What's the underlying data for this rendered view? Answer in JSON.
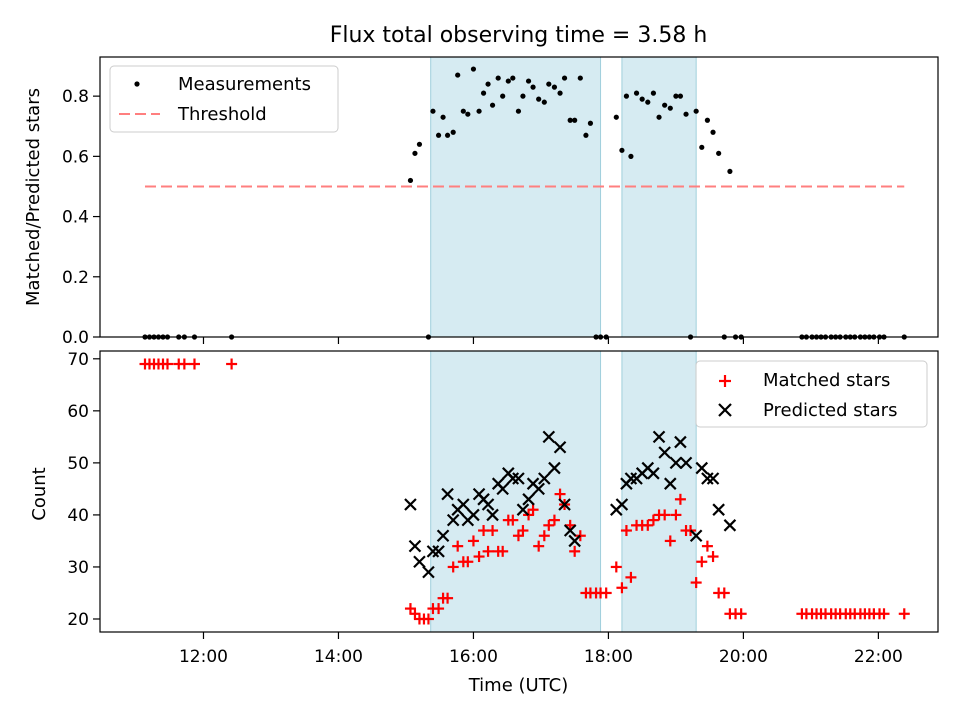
{
  "title": "Flux total observing time = 3.58 h",
  "chart_data": [
    {
      "type": "scatter",
      "ylabel": "Matched/Predicted stars",
      "ylim": [
        0,
        0.93
      ],
      "xlim": [
        "10:28",
        "22:53"
      ],
      "yticks": [
        "0.0",
        "0.2",
        "0.4",
        "0.6",
        "0.8"
      ],
      "ytick_values": [
        0,
        0.2,
        0.4,
        0.6,
        0.8
      ],
      "legend_position": "top-left",
      "shaded_intervals": [
        [
          "15:22",
          "17:53"
        ],
        [
          "18:12",
          "19:18"
        ]
      ],
      "threshold": {
        "name": "Threshold",
        "value": 0.5,
        "x_start": "11:08",
        "x_end": "22:23",
        "color": "#ff7f7f"
      },
      "series": [
        {
          "name": "Measurements",
          "color": "#000000",
          "points": [
            [
              "11:08",
              0
            ],
            [
              "11:12",
              0
            ],
            [
              "11:16",
              0
            ],
            [
              "11:20",
              0
            ],
            [
              "11:24",
              0
            ],
            [
              "11:28",
              0
            ],
            [
              "11:38",
              0
            ],
            [
              "11:43",
              0
            ],
            [
              "11:52",
              0
            ],
            [
              "12:25",
              0
            ],
            [
              "15:04",
              0.52
            ],
            [
              "15:08",
              0.61
            ],
            [
              "15:12",
              0.64
            ],
            [
              "15:20",
              0
            ],
            [
              "15:24",
              0.75
            ],
            [
              "15:29",
              0.67
            ],
            [
              "15:33",
              0.73
            ],
            [
              "15:37",
              0.67
            ],
            [
              "15:42",
              0.68
            ],
            [
              "15:46",
              0.87
            ],
            [
              "15:51",
              0.75
            ],
            [
              "15:55",
              0.74
            ],
            [
              "16:00",
              0.89
            ],
            [
              "16:05",
              0.75
            ],
            [
              "16:09",
              0.81
            ],
            [
              "16:13",
              0.84
            ],
            [
              "16:17",
              0.77
            ],
            [
              "16:22",
              0.86
            ],
            [
              "16:26",
              0.8
            ],
            [
              "16:31",
              0.85
            ],
            [
              "16:35",
              0.86
            ],
            [
              "16:40",
              0.75
            ],
            [
              "16:44",
              0.8
            ],
            [
              "16:49",
              0.85
            ],
            [
              "16:53",
              0.83
            ],
            [
              "16:58",
              0.79
            ],
            [
              "17:03",
              0.78
            ],
            [
              "17:07",
              0.84
            ],
            [
              "17:12",
              0.83
            ],
            [
              "17:17",
              0.81
            ],
            [
              "17:21",
              0.86
            ],
            [
              "17:26",
              0.72
            ],
            [
              "17:30",
              0.72
            ],
            [
              "17:35",
              0.86
            ],
            [
              "17:40",
              0.67
            ],
            [
              "17:44",
              0.71
            ],
            [
              "17:49",
              0
            ],
            [
              "17:53",
              0
            ],
            [
              "17:58",
              0
            ],
            [
              "18:07",
              0.73
            ],
            [
              "18:12",
              0.62
            ],
            [
              "18:16",
              0.8
            ],
            [
              "18:20",
              0.6
            ],
            [
              "18:25",
              0.81
            ],
            [
              "18:30",
              0.79
            ],
            [
              "18:35",
              0.78
            ],
            [
              "18:40",
              0.81
            ],
            [
              "18:45",
              0.73
            ],
            [
              "18:50",
              0.77
            ],
            [
              "18:55",
              0.76
            ],
            [
              "19:00",
              0.8
            ],
            [
              "19:04",
              0.8
            ],
            [
              "19:09",
              0.74
            ],
            [
              "19:13",
              0
            ],
            [
              "19:18",
              0.75
            ],
            [
              "19:23",
              0.63
            ],
            [
              "19:28",
              0.72
            ],
            [
              "19:33",
              0.68
            ],
            [
              "19:38",
              0.61
            ],
            [
              "19:43",
              0
            ],
            [
              "19:48",
              0.55
            ],
            [
              "19:53",
              0
            ],
            [
              "19:58",
              0
            ],
            [
              "20:52",
              0
            ],
            [
              "20:56",
              0
            ],
            [
              "21:01",
              0
            ],
            [
              "21:05",
              0
            ],
            [
              "21:09",
              0
            ],
            [
              "21:13",
              0
            ],
            [
              "21:18",
              0
            ],
            [
              "21:22",
              0
            ],
            [
              "21:26",
              0
            ],
            [
              "21:31",
              0
            ],
            [
              "21:35",
              0
            ],
            [
              "21:39",
              0
            ],
            [
              "21:44",
              0
            ],
            [
              "21:48",
              0
            ],
            [
              "21:52",
              0
            ],
            [
              "21:56",
              0
            ],
            [
              "22:01",
              0
            ],
            [
              "22:05",
              0
            ],
            [
              "22:23",
              0
            ]
          ]
        }
      ]
    },
    {
      "type": "scatter",
      "xlabel": "Time (UTC)",
      "ylabel": "Count",
      "ylim": [
        17.5,
        71.5
      ],
      "xlim": [
        "10:28",
        "22:53"
      ],
      "xticks": [
        "12:00",
        "14:00",
        "16:00",
        "18:00",
        "20:00",
        "22:00"
      ],
      "yticks": [
        "20",
        "30",
        "40",
        "50",
        "60",
        "70"
      ],
      "ytick_values": [
        20,
        30,
        40,
        50,
        60,
        70
      ],
      "legend_position": "top-right",
      "shaded_intervals": [
        [
          "15:22",
          "17:53"
        ],
        [
          "18:12",
          "19:18"
        ]
      ],
      "series": [
        {
          "name": "Matched stars",
          "marker": "plus",
          "color": "#ff0000",
          "points": [
            [
              "11:08",
              69
            ],
            [
              "11:12",
              69
            ],
            [
              "11:16",
              69
            ],
            [
              "11:20",
              69
            ],
            [
              "11:24",
              69
            ],
            [
              "11:28",
              69
            ],
            [
              "11:38",
              69
            ],
            [
              "11:43",
              69
            ],
            [
              "11:52",
              69
            ],
            [
              "12:25",
              69
            ],
            [
              "15:04",
              22
            ],
            [
              "15:08",
              21
            ],
            [
              "15:12",
              20
            ],
            [
              "15:16",
              20
            ],
            [
              "15:20",
              20
            ],
            [
              "15:24",
              22
            ],
            [
              "15:29",
              22
            ],
            [
              "15:33",
              24
            ],
            [
              "15:37",
              24
            ],
            [
              "15:42",
              30
            ],
            [
              "15:46",
              34
            ],
            [
              "15:51",
              31
            ],
            [
              "15:55",
              31
            ],
            [
              "16:00",
              35
            ],
            [
              "16:05",
              32
            ],
            [
              "16:09",
              37
            ],
            [
              "16:13",
              33
            ],
            [
              "16:17",
              37
            ],
            [
              "16:22",
              33
            ],
            [
              "16:26",
              33
            ],
            [
              "16:31",
              39
            ],
            [
              "16:35",
              39
            ],
            [
              "16:40",
              36
            ],
            [
              "16:44",
              37
            ],
            [
              "16:49",
              40
            ],
            [
              "16:53",
              41
            ],
            [
              "16:58",
              34
            ],
            [
              "17:03",
              36
            ],
            [
              "17:07",
              38
            ],
            [
              "17:12",
              39
            ],
            [
              "17:17",
              44
            ],
            [
              "17:21",
              42
            ],
            [
              "17:26",
              38
            ],
            [
              "17:30",
              33
            ],
            [
              "17:35",
              36
            ],
            [
              "17:40",
              25
            ],
            [
              "17:44",
              25
            ],
            [
              "17:49",
              25
            ],
            [
              "17:53",
              25
            ],
            [
              "17:58",
              25
            ],
            [
              "18:07",
              30
            ],
            [
              "18:12",
              26
            ],
            [
              "18:16",
              37
            ],
            [
              "18:20",
              28
            ],
            [
              "18:25",
              38
            ],
            [
              "18:30",
              38
            ],
            [
              "18:35",
              38
            ],
            [
              "18:40",
              39
            ],
            [
              "18:45",
              40
            ],
            [
              "18:50",
              40
            ],
            [
              "18:55",
              35
            ],
            [
              "19:00",
              40
            ],
            [
              "19:04",
              43
            ],
            [
              "19:09",
              37
            ],
            [
              "19:13",
              37
            ],
            [
              "19:18",
              27
            ],
            [
              "19:23",
              31
            ],
            [
              "19:28",
              34
            ],
            [
              "19:33",
              32
            ],
            [
              "19:38",
              25
            ],
            [
              "19:43",
              25
            ],
            [
              "19:48",
              21
            ],
            [
              "19:53",
              21
            ],
            [
              "19:58",
              21
            ],
            [
              "20:52",
              21
            ],
            [
              "20:56",
              21
            ],
            [
              "21:01",
              21
            ],
            [
              "21:05",
              21
            ],
            [
              "21:09",
              21
            ],
            [
              "21:13",
              21
            ],
            [
              "21:18",
              21
            ],
            [
              "21:22",
              21
            ],
            [
              "21:26",
              21
            ],
            [
              "21:31",
              21
            ],
            [
              "21:35",
              21
            ],
            [
              "21:39",
              21
            ],
            [
              "21:44",
              21
            ],
            [
              "21:48",
              21
            ],
            [
              "21:52",
              21
            ],
            [
              "21:56",
              21
            ],
            [
              "22:01",
              21
            ],
            [
              "22:05",
              21
            ],
            [
              "22:23",
              21
            ]
          ]
        },
        {
          "name": "Predicted stars",
          "marker": "x",
          "color": "#000000",
          "points": [
            [
              "15:04",
              42
            ],
            [
              "15:08",
              34
            ],
            [
              "15:12",
              31
            ],
            [
              "15:20",
              29
            ],
            [
              "15:24",
              33
            ],
            [
              "15:29",
              33
            ],
            [
              "15:33",
              36
            ],
            [
              "15:37",
              44
            ],
            [
              "15:42",
              39
            ],
            [
              "15:46",
              41
            ],
            [
              "15:51",
              42
            ],
            [
              "15:55",
              39
            ],
            [
              "16:00",
              40
            ],
            [
              "16:05",
              44
            ],
            [
              "16:09",
              43
            ],
            [
              "16:13",
              42
            ],
            [
              "16:17",
              40
            ],
            [
              "16:22",
              46
            ],
            [
              "16:26",
              45
            ],
            [
              "16:31",
              48
            ],
            [
              "16:35",
              47
            ],
            [
              "16:40",
              47
            ],
            [
              "16:44",
              41
            ],
            [
              "16:49",
              43
            ],
            [
              "16:53",
              46
            ],
            [
              "16:58",
              45
            ],
            [
              "17:03",
              47
            ],
            [
              "17:07",
              55
            ],
            [
              "17:12",
              49
            ],
            [
              "17:17",
              53
            ],
            [
              "17:21",
              42
            ],
            [
              "17:26",
              37
            ],
            [
              "17:30",
              35
            ],
            [
              "18:07",
              41
            ],
            [
              "18:12",
              42
            ],
            [
              "18:16",
              46
            ],
            [
              "18:20",
              47
            ],
            [
              "18:25",
              47
            ],
            [
              "18:30",
              48
            ],
            [
              "18:35",
              49
            ],
            [
              "18:40",
              48
            ],
            [
              "18:45",
              55
            ],
            [
              "18:50",
              52
            ],
            [
              "18:55",
              46
            ],
            [
              "19:00",
              50
            ],
            [
              "19:04",
              54
            ],
            [
              "19:09",
              50
            ],
            [
              "19:18",
              36
            ],
            [
              "19:23",
              49
            ],
            [
              "19:28",
              47
            ],
            [
              "19:33",
              47
            ],
            [
              "19:38",
              41
            ],
            [
              "19:48",
              38
            ]
          ]
        }
      ]
    }
  ]
}
